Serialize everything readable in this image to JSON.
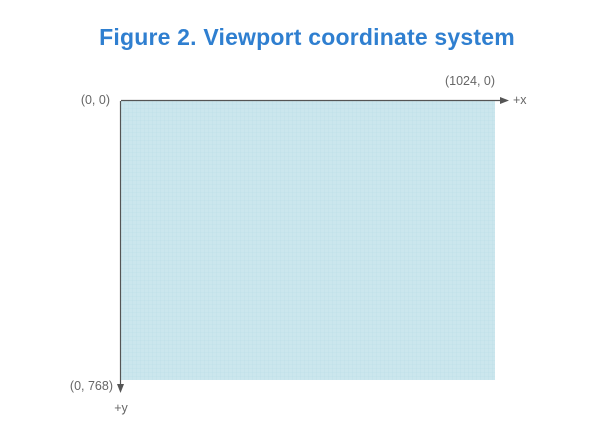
{
  "title": "Figure 2. Viewport coordinate system",
  "labels": {
    "origin": "(0, 0)",
    "top_right": "(1024, 0)",
    "bottom_left": "(0, 768)",
    "x_axis": "+x",
    "y_axis": "+y"
  },
  "colors": {
    "title": "#2f7fd0",
    "viewport_fill": "#cbe6ed",
    "grid": "#b9dce6",
    "axis": "#555555",
    "label": "#666666"
  }
}
